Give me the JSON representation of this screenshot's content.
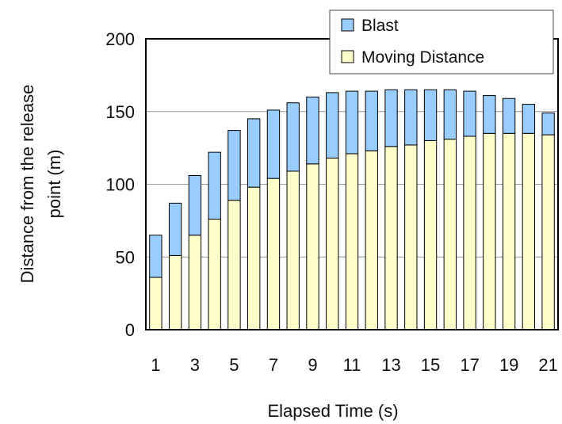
{
  "chart_data": {
    "type": "bar",
    "stacked": true,
    "title": "",
    "xlabel": "Elapsed Time (s)",
    "ylabel": "Distance from the release point (m)",
    "ylabel_lines": [
      "Distance from the release",
      "point (m)"
    ],
    "ylim": [
      0,
      200
    ],
    "yticks": [
      0,
      50,
      100,
      150,
      200
    ],
    "categories": [
      1,
      2,
      3,
      4,
      5,
      6,
      7,
      8,
      9,
      10,
      11,
      12,
      13,
      14,
      15,
      16,
      17,
      18,
      19,
      20,
      21
    ],
    "xtick_labels": [
      "1",
      "",
      "3",
      "",
      "5",
      "",
      "7",
      "",
      "9",
      "",
      "11",
      "",
      "13",
      "",
      "15",
      "",
      "17",
      "",
      "19",
      "",
      "21"
    ],
    "grid": "horizontal",
    "legend_position": "top-right",
    "series": [
      {
        "name": "Moving Distance",
        "color": "#ffffcc",
        "values": [
          36,
          51,
          65,
          76,
          89,
          98,
          104,
          109,
          114,
          118,
          121,
          123,
          126,
          127,
          130,
          131,
          133,
          135,
          135,
          135,
          134
        ]
      },
      {
        "name": "Blast",
        "color": "#99ccff",
        "values": [
          29,
          36,
          41,
          46,
          48,
          47,
          47,
          47,
          46,
          45,
          43,
          41,
          39,
          38,
          35,
          34,
          31,
          26,
          24,
          20,
          15
        ]
      }
    ],
    "legend_order": [
      "Blast",
      "Moving Distance"
    ]
  }
}
